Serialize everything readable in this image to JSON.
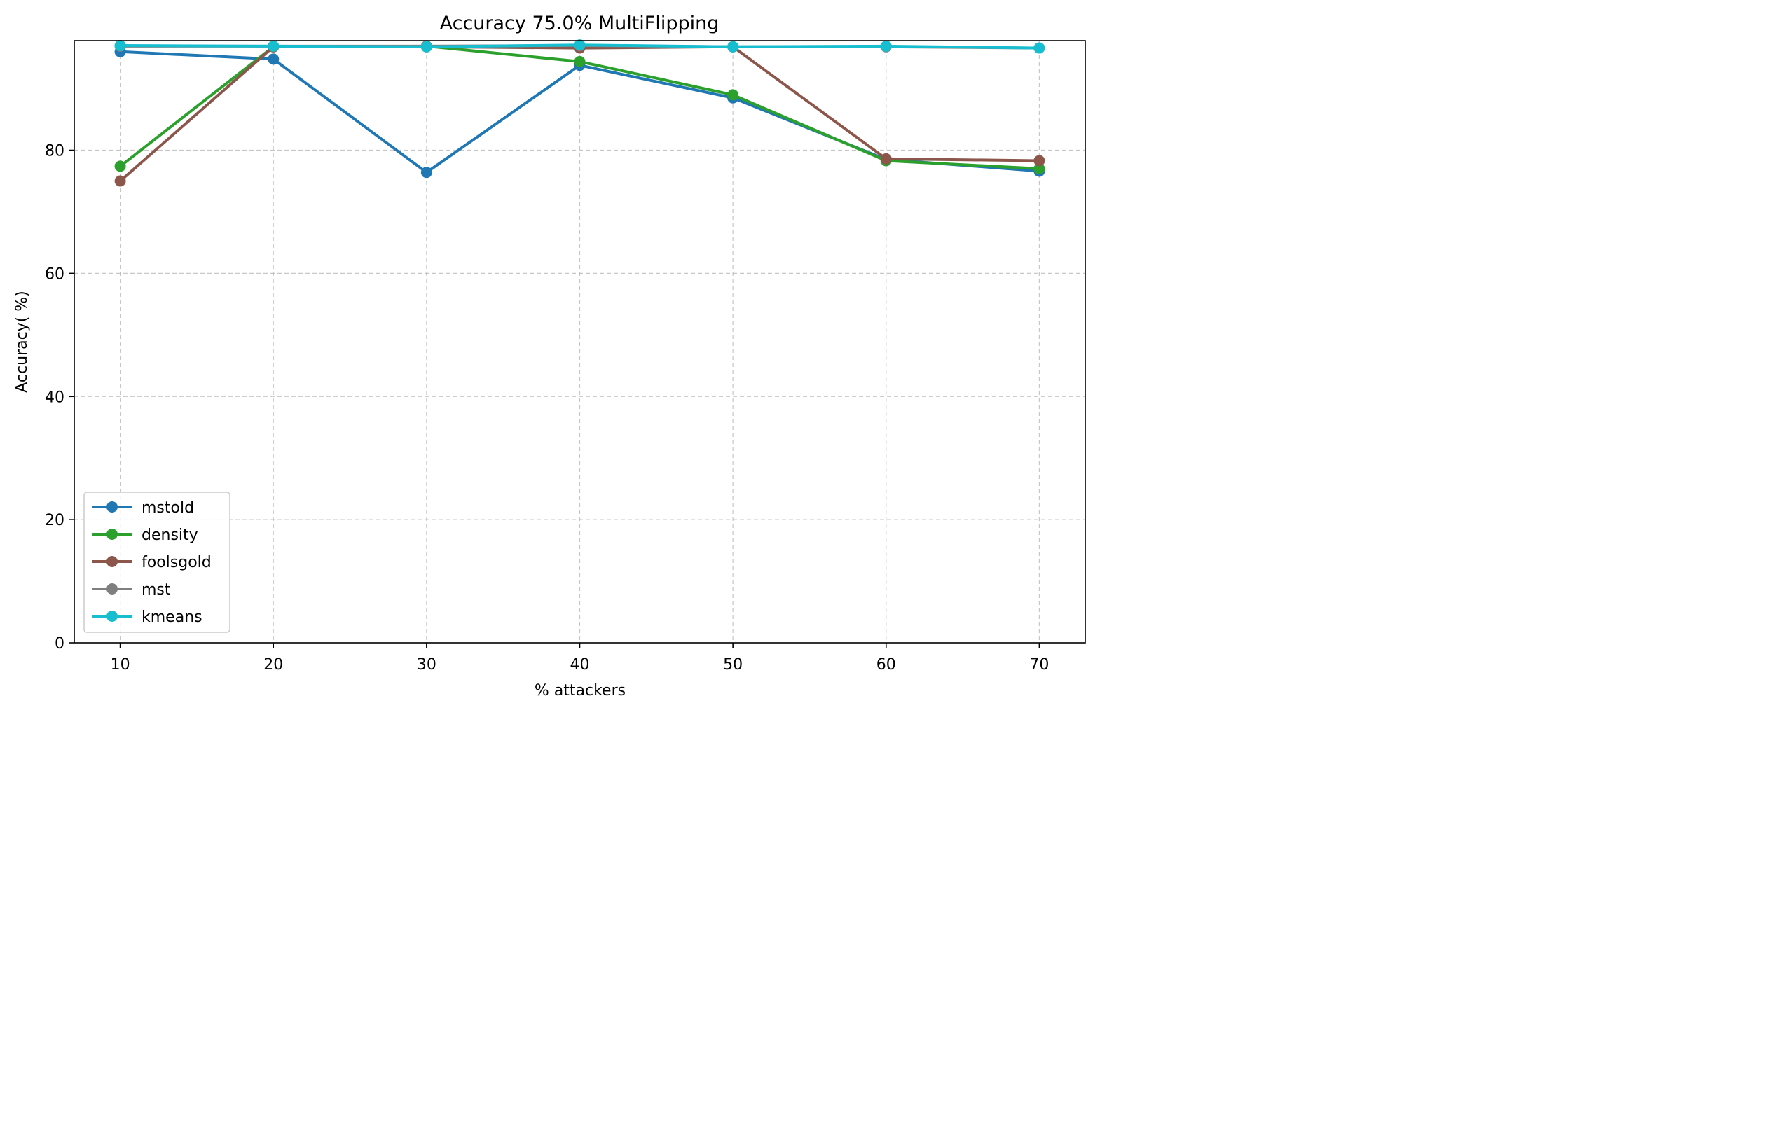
{
  "chart_data": {
    "type": "line",
    "title": "Accuracy 75.0% MultiFlipping",
    "xlabel": "% attackers",
    "ylabel": "Accuracy( %)",
    "x": [
      10,
      20,
      30,
      40,
      50,
      60,
      70
    ],
    "xticks": [
      "10",
      "20",
      "30",
      "40",
      "50",
      "60",
      "70"
    ],
    "yticks": [
      "0",
      "20",
      "40",
      "60",
      "80"
    ],
    "xlim": [
      7,
      73
    ],
    "ylim": [
      0,
      97.8
    ],
    "grid": true,
    "legend_position": "lower-left",
    "series": [
      {
        "name": "mstold",
        "color": "#1f77b4",
        "values": [
          96.0,
          94.8,
          76.4,
          93.8,
          88.5,
          78.5,
          76.6
        ]
      },
      {
        "name": "density",
        "color": "#2ca02c",
        "values": [
          77.4,
          96.8,
          96.9,
          94.4,
          89.0,
          78.3,
          77.0
        ]
      },
      {
        "name": "foolsgold",
        "color": "#8c564b",
        "values": [
          75.0,
          96.8,
          96.8,
          96.6,
          96.8,
          78.6,
          78.3
        ]
      },
      {
        "name": "mst",
        "color": "#7f7f7f",
        "values": [
          96.9,
          96.9,
          96.9,
          97.0,
          96.8,
          96.8,
          96.6
        ]
      },
      {
        "name": "kmeans",
        "color": "#17becf",
        "values": [
          97.0,
          96.9,
          96.8,
          97.1,
          96.8,
          96.9,
          96.6
        ]
      }
    ]
  }
}
